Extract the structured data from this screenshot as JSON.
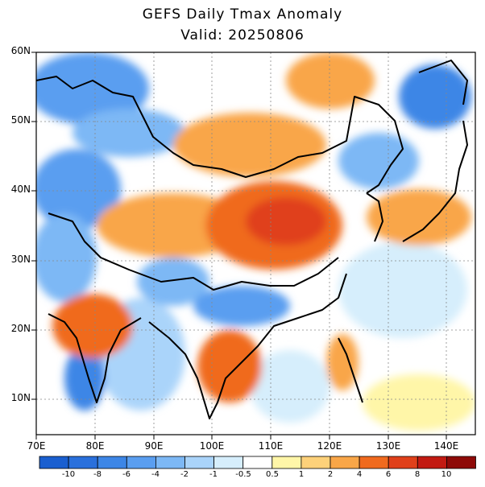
{
  "title": "GEFS Daily Tmax Anomaly",
  "subtitle": "Valid: 20250806",
  "lat_labels": [
    "60N",
    "50N",
    "40N",
    "30N",
    "20N",
    "10N"
  ],
  "lon_labels": [
    "70E",
    "80E",
    "90E",
    "100E",
    "110E",
    "120E",
    "130E",
    "140E"
  ],
  "colorbar": {
    "labels": [
      "-10",
      "-8",
      "-6",
      "-4",
      "-2",
      "-1",
      "-0.5",
      "0.5",
      "1",
      "2",
      "4",
      "6",
      "8",
      "10"
    ],
    "colors": [
      "#1a5fd0",
      "#2a70dc",
      "#3d86e6",
      "#5a9ef0",
      "#7db8f5",
      "#aad4fa",
      "#d6eefc",
      "#ffffff",
      "#fff6a8",
      "#fdd17a",
      "#f9a648",
      "#f06a1e",
      "#e0401a",
      "#c21a12",
      "#8e0a08"
    ]
  },
  "map": {
    "region": "East and South Asia",
    "lon_range": [
      70,
      145
    ],
    "lat_range": [
      5,
      60
    ],
    "variable": "Tmax anomaly",
    "grid": true
  }
}
